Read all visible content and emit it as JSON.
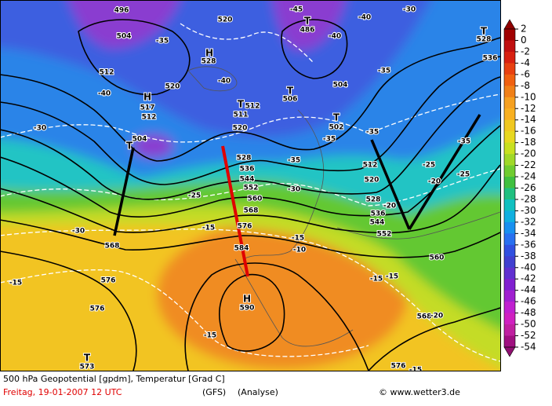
{
  "map": {
    "labels": [
      "496",
      "504",
      "-35",
      "520",
      "-45",
      "T",
      "486",
      "-40",
      "-30",
      "T",
      "528",
      "-40",
      "536",
      "H",
      "528",
      "-40",
      "512",
      "520",
      "-40",
      "504",
      "-35",
      "H",
      "517",
      "512",
      "T",
      "506",
      "T",
      "511",
      "512",
      "T",
      "502",
      "-30",
      "520",
      "-35",
      "-35",
      "-35",
      "T",
      "504",
      "528",
      "-35",
      "512",
      "536",
      "544",
      "-25",
      "-25",
      "552",
      "520",
      "-30",
      "-20",
      "-25",
      "560",
      "528",
      "568",
      "-20",
      "536",
      "544",
      "-30",
      "-15",
      "576",
      "552",
      "-15",
      "568",
      "584",
      "-10",
      "560",
      "-15",
      "576",
      "-15",
      "-15",
      "H",
      "590",
      "576",
      "568",
      "-20",
      "-15",
      "T",
      "573",
      "576",
      "-15"
    ],
    "colorbar": [
      2,
      0,
      -2,
      -4,
      -6,
      -8,
      -10,
      -12,
      -14,
      -16,
      -18,
      -20,
      -22,
      -24,
      -26,
      -28,
      -30,
      -32,
      -34,
      -36,
      -38,
      -40,
      -42,
      -44,
      -46,
      -48,
      -50,
      -52,
      -54
    ]
  },
  "footer": {
    "line1": "500 hPa Geopotential [gpdm], Temperatur [Grad C]",
    "date": "Freitag, 19-01-2007   12 UTC",
    "model": "(GFS)",
    "run": "(Analyse)",
    "credit": "© www.wetter3.de"
  }
}
